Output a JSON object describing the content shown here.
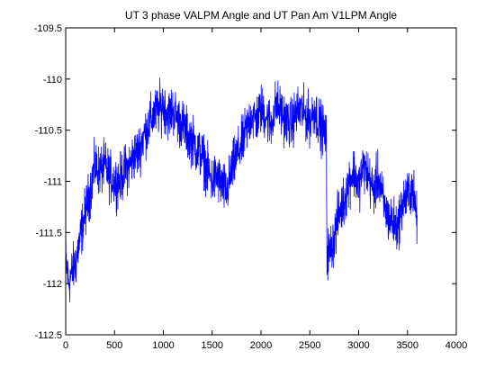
{
  "chart_data": {
    "type": "line",
    "title": "UT 3 phase VALPM Angle and UT Pan Am V1LPM Angle",
    "xlabel": "",
    "ylabel": "",
    "xlim": [
      0,
      4000
    ],
    "ylim": [
      -112.5,
      -109.5
    ],
    "xticks": [
      0,
      500,
      1000,
      1500,
      2000,
      2500,
      3000,
      3500,
      4000
    ],
    "yticks": [
      -109.5,
      -110,
      -110.5,
      -111,
      -111.5,
      -112,
      -112.5
    ],
    "xtick_labels": [
      "0",
      "500",
      "1000",
      "1500",
      "2000",
      "2500",
      "3000",
      "3500",
      "4000"
    ],
    "ytick_labels": [
      "-109.5",
      "-110",
      "-110.5",
      "-111",
      "-111.5",
      "-112",
      "-112.5"
    ],
    "grid": false,
    "legend": false,
    "series": [
      {
        "color": "#0000ff",
        "noise_amplitude": 0.12,
        "x": [
          0,
          30,
          60,
          100,
          150,
          200,
          250,
          300,
          350,
          400,
          450,
          500,
          550,
          600,
          650,
          700,
          750,
          800,
          850,
          900,
          950,
          1000,
          1050,
          1100,
          1150,
          1200,
          1250,
          1300,
          1350,
          1400,
          1450,
          1500,
          1550,
          1600,
          1650,
          1700,
          1750,
          1800,
          1850,
          1900,
          1950,
          2000,
          2050,
          2100,
          2150,
          2200,
          2250,
          2300,
          2350,
          2400,
          2450,
          2500,
          2550,
          2600,
          2640,
          2670,
          2675,
          2700,
          2750,
          2800,
          2850,
          2900,
          2950,
          3000,
          3050,
          3100,
          3150,
          3200,
          3250,
          3300,
          3350,
          3400,
          3450,
          3500,
          3550,
          3600
        ],
        "y": [
          -111.75,
          -112.0,
          -111.9,
          -111.8,
          -111.55,
          -111.3,
          -111.1,
          -110.85,
          -110.9,
          -110.85,
          -110.95,
          -111.0,
          -111.0,
          -110.9,
          -110.85,
          -110.75,
          -110.7,
          -110.55,
          -110.45,
          -110.35,
          -110.3,
          -110.25,
          -110.35,
          -110.3,
          -110.4,
          -110.45,
          -110.55,
          -110.6,
          -110.7,
          -110.75,
          -110.9,
          -111.0,
          -110.95,
          -111.05,
          -111.1,
          -110.9,
          -110.75,
          -110.65,
          -110.5,
          -110.35,
          -110.4,
          -110.3,
          -110.35,
          -110.45,
          -110.25,
          -110.3,
          -110.4,
          -110.45,
          -110.35,
          -110.3,
          -110.35,
          -110.4,
          -110.3,
          -110.45,
          -110.5,
          -110.6,
          -111.7,
          -111.7,
          -111.55,
          -111.3,
          -111.2,
          -111.0,
          -110.9,
          -111.05,
          -110.85,
          -110.95,
          -111.1,
          -110.95,
          -111.2,
          -111.35,
          -111.4,
          -111.45,
          -111.2,
          -111.15,
          -111.05,
          -111.4
        ]
      }
    ]
  }
}
